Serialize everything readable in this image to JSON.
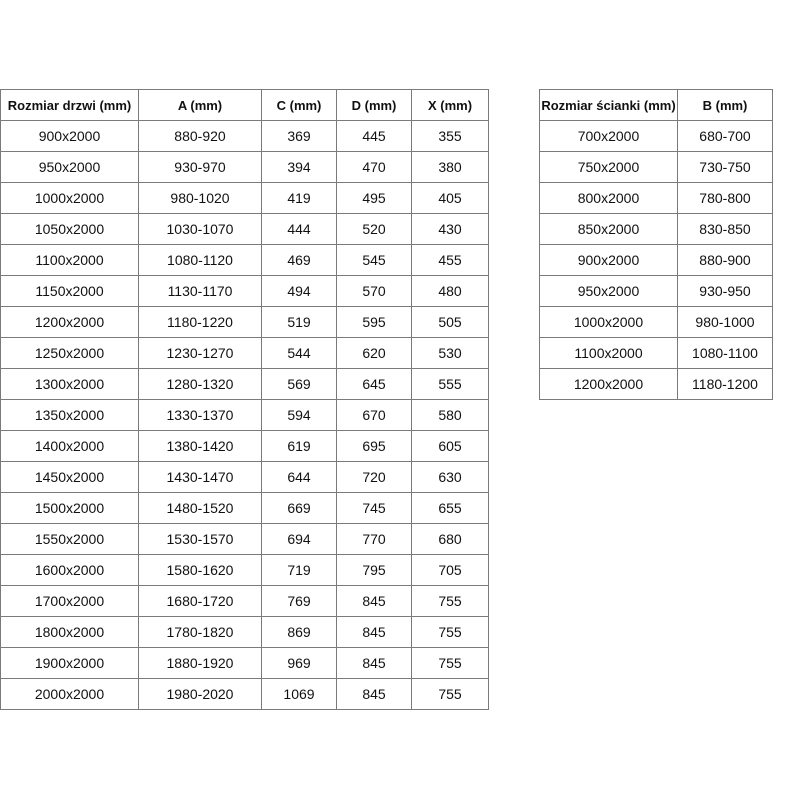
{
  "door_table": {
    "headers": [
      "Rozmiar drzwi (mm)",
      "A (mm)",
      "C (mm)",
      "D (mm)",
      "X (mm)"
    ],
    "rows": [
      [
        "900x2000",
        "880-920",
        "369",
        "445",
        "355"
      ],
      [
        "950x2000",
        "930-970",
        "394",
        "470",
        "380"
      ],
      [
        "1000x2000",
        "980-1020",
        "419",
        "495",
        "405"
      ],
      [
        "1050x2000",
        "1030-1070",
        "444",
        "520",
        "430"
      ],
      [
        "1100x2000",
        "1080-1120",
        "469",
        "545",
        "455"
      ],
      [
        "1150x2000",
        "1130-1170",
        "494",
        "570",
        "480"
      ],
      [
        "1200x2000",
        "1180-1220",
        "519",
        "595",
        "505"
      ],
      [
        "1250x2000",
        "1230-1270",
        "544",
        "620",
        "530"
      ],
      [
        "1300x2000",
        "1280-1320",
        "569",
        "645",
        "555"
      ],
      [
        "1350x2000",
        "1330-1370",
        "594",
        "670",
        "580"
      ],
      [
        "1400x2000",
        "1380-1420",
        "619",
        "695",
        "605"
      ],
      [
        "1450x2000",
        "1430-1470",
        "644",
        "720",
        "630"
      ],
      [
        "1500x2000",
        "1480-1520",
        "669",
        "745",
        "655"
      ],
      [
        "1550x2000",
        "1530-1570",
        "694",
        "770",
        "680"
      ],
      [
        "1600x2000",
        "1580-1620",
        "719",
        "795",
        "705"
      ],
      [
        "1700x2000",
        "1680-1720",
        "769",
        "845",
        "755"
      ],
      [
        "1800x2000",
        "1780-1820",
        "869",
        "845",
        "755"
      ],
      [
        "1900x2000",
        "1880-1920",
        "969",
        "845",
        "755"
      ],
      [
        "2000x2000",
        "1980-2020",
        "1069",
        "845",
        "755"
      ]
    ]
  },
  "wall_table": {
    "headers": [
      "Rozmiar ścianki (mm)",
      "B (mm)"
    ],
    "rows": [
      [
        "700x2000",
        "680-700"
      ],
      [
        "750x2000",
        "730-750"
      ],
      [
        "800x2000",
        "780-800"
      ],
      [
        "850x2000",
        "830-850"
      ],
      [
        "900x2000",
        "880-900"
      ],
      [
        "950x2000",
        "930-950"
      ],
      [
        "1000x2000",
        "980-1000"
      ],
      [
        "1100x2000",
        "1080-1100"
      ],
      [
        "1200x2000",
        "1180-1200"
      ]
    ]
  }
}
